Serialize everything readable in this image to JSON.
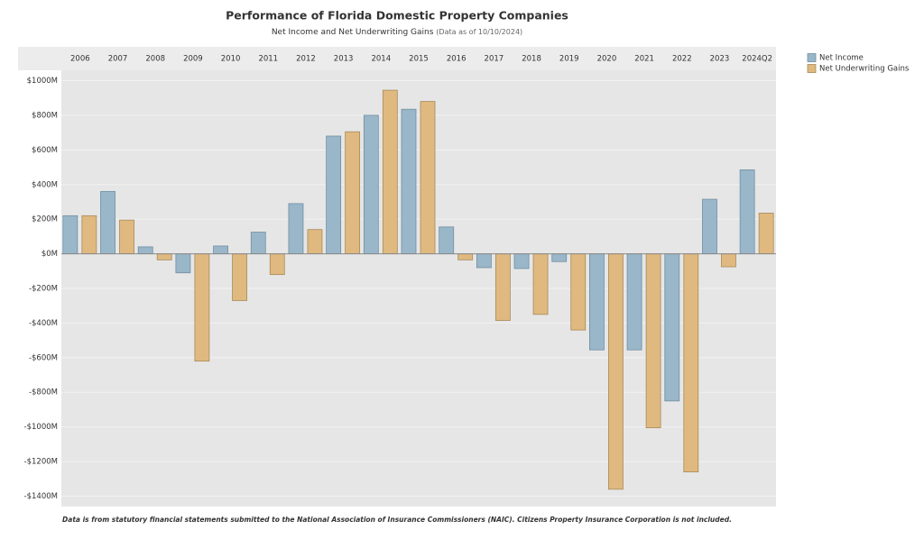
{
  "chart_data": {
    "type": "bar",
    "title": "Performance of Florida Domestic Property Companies",
    "subtitle": "Net Income and Net Underwriting Gains",
    "subtitle_note": "(Data as of 10/10/2024)",
    "footnote": "Data is from statutory financial statements submitted to the National Association of Insurance Commissioners (NAIC). Citizens Property Insurance Corporation is not included.",
    "categories": [
      "2006",
      "2007",
      "2008",
      "2009",
      "2010",
      "2011",
      "2012",
      "2013",
      "2014",
      "2015",
      "2016",
      "2017",
      "2018",
      "2019",
      "2020",
      "2021",
      "2022",
      "2023",
      "2024Q2"
    ],
    "series": [
      {
        "name": "Net Income",
        "color": "#9ab7c9",
        "stroke": "#6f8ea2",
        "values": [
          220,
          360,
          40,
          -110,
          45,
          125,
          290,
          680,
          800,
          835,
          155,
          -80,
          -85,
          -45,
          -555,
          -555,
          -850,
          315,
          485
        ]
      },
      {
        "name": "Net Underwriting Gains",
        "color": "#dfb97f",
        "stroke": "#a88a5a",
        "values": [
          220,
          195,
          -35,
          -620,
          -270,
          -120,
          140,
          705,
          945,
          880,
          -35,
          -385,
          -350,
          -440,
          -1360,
          -1005,
          -1260,
          -75,
          235
        ]
      }
    ],
    "ylim": [
      -1460,
      1060
    ],
    "yticks": [
      {
        "value": 1000,
        "label": "$1000M"
      },
      {
        "value": 800,
        "label": "$800M"
      },
      {
        "value": 600,
        "label": "$600M"
      },
      {
        "value": 400,
        "label": "$400M"
      },
      {
        "value": 200,
        "label": "$200M"
      },
      {
        "value": 0,
        "label": "$0M"
      },
      {
        "value": -200,
        "label": "-$200M"
      },
      {
        "value": -400,
        "label": "-$400M"
      },
      {
        "value": -600,
        "label": "-$600M"
      },
      {
        "value": -800,
        "label": "-$800M"
      },
      {
        "value": -1000,
        "label": "-$1000M"
      },
      {
        "value": -1200,
        "label": "-$1200M"
      },
      {
        "value": -1400,
        "label": "-$1400M"
      }
    ],
    "grid": true,
    "legend": "right"
  }
}
